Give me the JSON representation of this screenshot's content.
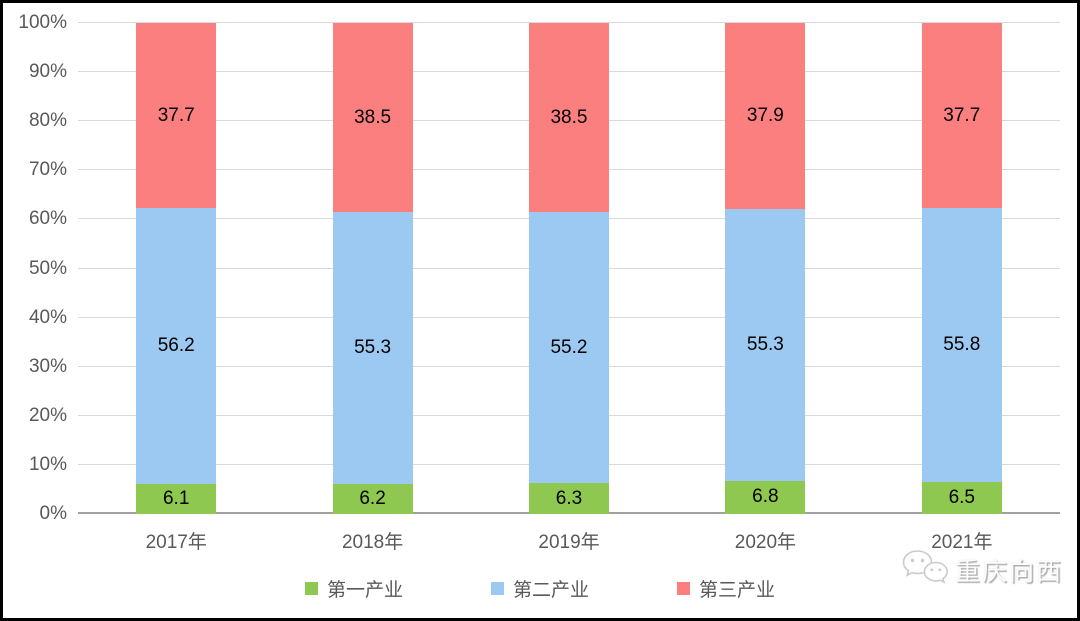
{
  "chart_data": {
    "type": "bar",
    "subtype": "stacked-100-percent-column",
    "title": "",
    "xlabel": "",
    "ylabel": "",
    "categories": [
      "2017年",
      "2018年",
      "2019年",
      "2020年",
      "2021年"
    ],
    "series": [
      {
        "name": "第一产业",
        "color": "#8ec850",
        "values": [
          6.1,
          6.2,
          6.3,
          6.8,
          6.5
        ]
      },
      {
        "name": "第二产业",
        "color": "#9cc9f1",
        "values": [
          56.2,
          55.3,
          55.2,
          55.3,
          55.8
        ]
      },
      {
        "name": "第三产业",
        "color": "#fb7f7f",
        "values": [
          37.7,
          38.5,
          38.5,
          37.9,
          37.7
        ]
      }
    ],
    "y_ticks": [
      "0%",
      "10%",
      "20%",
      "30%",
      "40%",
      "50%",
      "60%",
      "70%",
      "80%",
      "90%",
      "100%"
    ],
    "ylim": [
      0,
      100
    ],
    "grid": true,
    "gridline_color": "#d9d9d9",
    "axis_text_color": "#595959",
    "data_label_color": "#000000",
    "legend_position": "bottom"
  },
  "watermark": {
    "text": "重庆向西",
    "icon": "wechat-icon"
  }
}
